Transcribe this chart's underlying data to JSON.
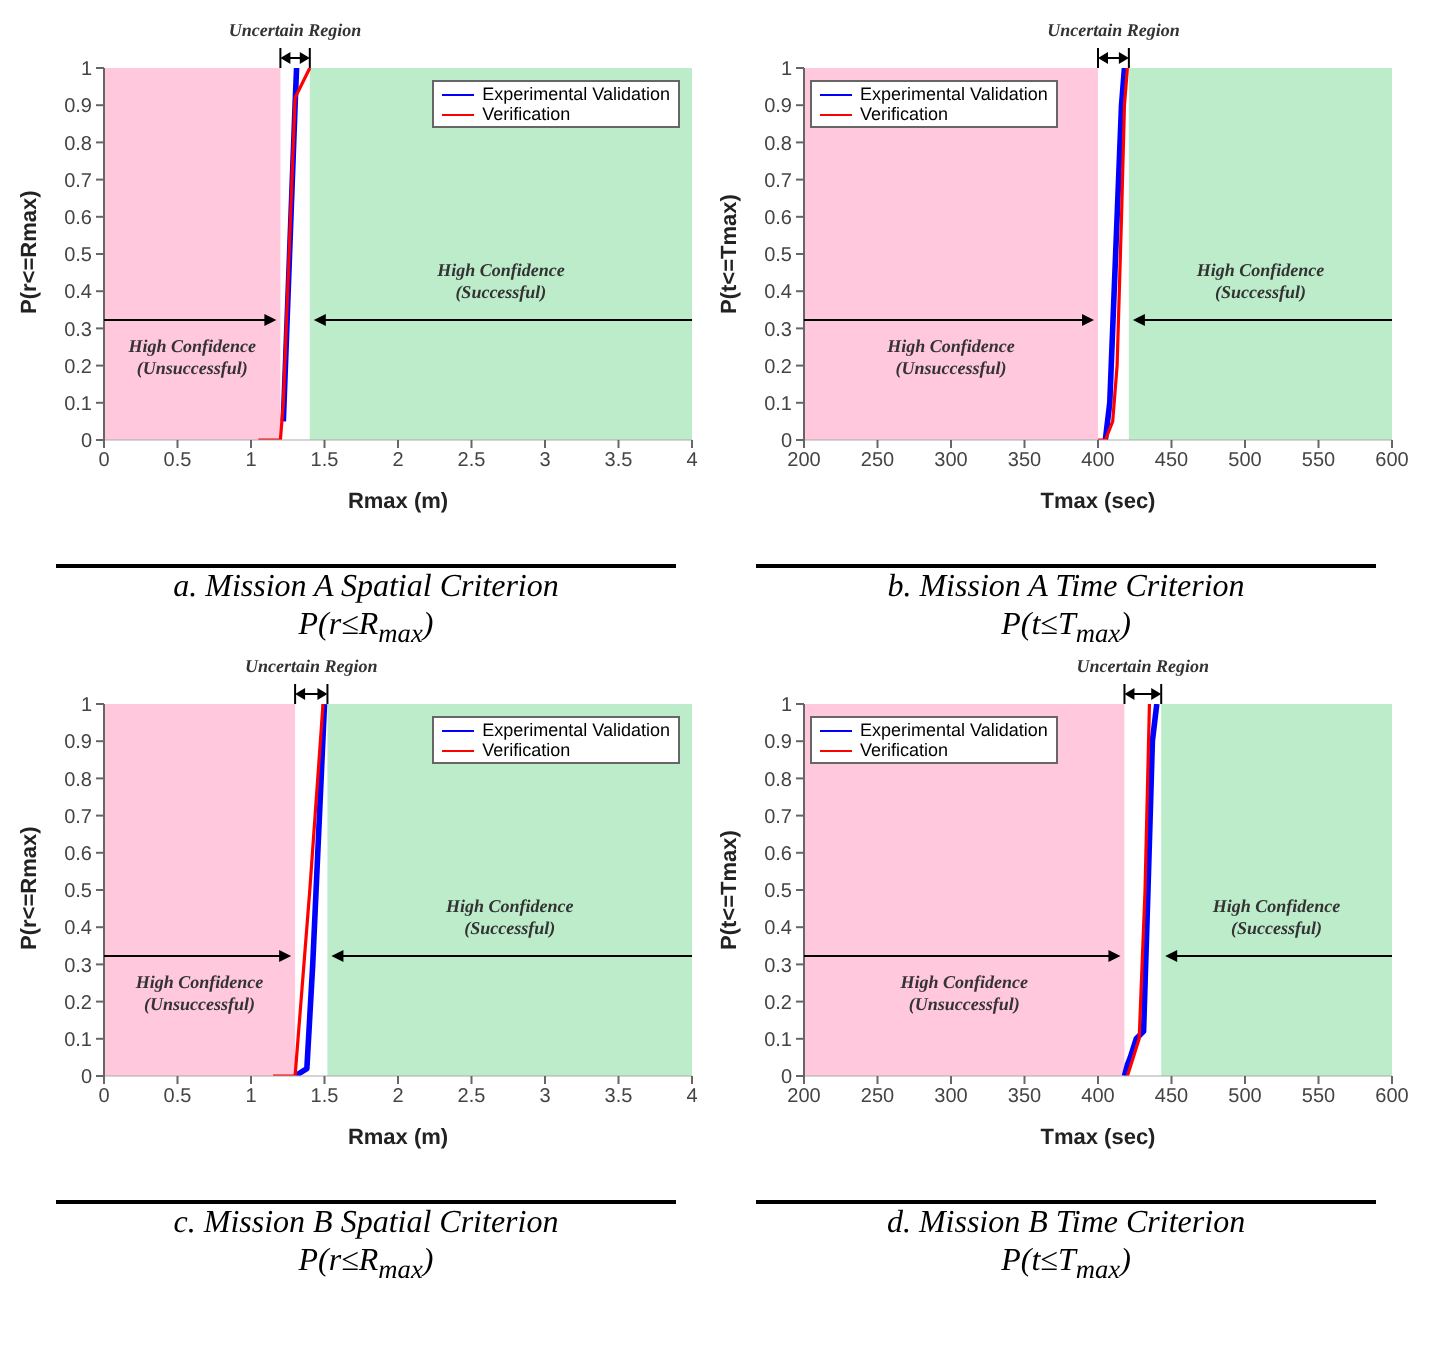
{
  "chart_data": [
    {
      "type": "line",
      "title": "a. Mission A Spatial Criterion",
      "subtitle": "P(r≤R$_{max}$)",
      "xlabel": "Rmax (m)",
      "ylabel": "P(r<=Rmax)",
      "xlim": [
        0,
        4
      ],
      "xticks": [
        0,
        0.5,
        1,
        1.5,
        2,
        2.5,
        3,
        3.5,
        4
      ],
      "ylim": [
        0,
        1
      ],
      "yticks": [
        0,
        0.1,
        0.2,
        0.3,
        0.4,
        0.5,
        0.6,
        0.7,
        0.8,
        0.9,
        1
      ],
      "legend": "top right",
      "grid": false,
      "annotations": [
        "Uncertain Region"
      ],
      "bands": [
        {
          "axis": "x",
          "from": 0,
          "to": 1.2,
          "label": "High Confidence (Unsuccessful)",
          "color": "#ffc8dc"
        },
        {
          "axis": "x",
          "from": 1.4,
          "to": 4,
          "label": "High Confidence (Successful)",
          "color": "#bdeccb"
        }
      ],
      "series": [
        {
          "name": "Experimental Validation",
          "color": "#0000ff",
          "x": [
            1.22,
            1.3,
            1.31
          ],
          "values": [
            0.05,
            0.9,
            1
          ]
        },
        {
          "name": "Verification",
          "color": "#ff0000",
          "x": [
            1.05,
            1.2,
            1.22,
            1.3,
            1.4
          ],
          "values": [
            0,
            0,
            0.1,
            0.92,
            1
          ]
        }
      ]
    },
    {
      "type": "line",
      "title": "b. Mission A Time Criterion",
      "subtitle": "P(t≤T$_{max}$)",
      "xlabel": "Tmax (sec)",
      "ylabel": "P(t<=Tmax)",
      "xlim": [
        200,
        600
      ],
      "xticks": [
        200,
        250,
        300,
        350,
        400,
        450,
        500,
        550,
        600
      ],
      "ylim": [
        0,
        1
      ],
      "yticks": [
        0,
        0.1,
        0.2,
        0.3,
        0.4,
        0.5,
        0.6,
        0.7,
        0.8,
        0.9,
        1
      ],
      "legend": "top left",
      "grid": false,
      "annotations": [
        "Uncertain Region"
      ],
      "bands": [
        {
          "axis": "x",
          "from": 200,
          "to": 400,
          "label": "High Confidence (Unsuccessful)",
          "color": "#ffc8dc"
        },
        {
          "axis": "x",
          "from": 421,
          "to": 600,
          "label": "High Confidence (Successful)",
          "color": "#bdeccb"
        }
      ],
      "series": [
        {
          "name": "Experimental Validation",
          "color": "#0000ff",
          "x": [
            405,
            408,
            412,
            416,
            418
          ],
          "values": [
            0,
            0.1,
            0.5,
            0.9,
            1
          ]
        },
        {
          "name": "Verification",
          "color": "#ff0000",
          "x": [
            400,
            405,
            410,
            413,
            416,
            418,
            420
          ],
          "values": [
            0,
            0,
            0.05,
            0.2,
            0.6,
            0.9,
            1
          ]
        }
      ]
    },
    {
      "type": "line",
      "title": "c. Mission B Spatial Criterion",
      "subtitle": "P(r≤R$_{max}$)",
      "xlabel": "Rmax (m)",
      "ylabel": "P(r<=Rmax)",
      "xlim": [
        0,
        4
      ],
      "xticks": [
        0,
        0.5,
        1,
        1.5,
        2,
        2.5,
        3,
        3.5,
        4
      ],
      "ylim": [
        0,
        1
      ],
      "yticks": [
        0,
        0.1,
        0.2,
        0.3,
        0.4,
        0.5,
        0.6,
        0.7,
        0.8,
        0.9,
        1
      ],
      "legend": "top right",
      "grid": false,
      "annotations": [
        "Uncertain Region"
      ],
      "bands": [
        {
          "axis": "x",
          "from": 0,
          "to": 1.3,
          "label": "High Confidence (Unsuccessful)",
          "color": "#ffc8dc"
        },
        {
          "axis": "x",
          "from": 1.52,
          "to": 4,
          "label": "High Confidence (Successful)",
          "color": "#bdeccb"
        }
      ],
      "series": [
        {
          "name": "Experimental Validation",
          "color": "#0000ff",
          "x": [
            1.3,
            1.38,
            1.42,
            1.5
          ],
          "values": [
            0,
            0.02,
            0.3,
            1
          ]
        },
        {
          "name": "Verification",
          "color": "#ff0000",
          "x": [
            1.15,
            1.3,
            1.4,
            1.49
          ],
          "values": [
            0,
            0,
            0.5,
            1
          ]
        }
      ]
    },
    {
      "type": "line",
      "title": "d. Mission B Time Criterion",
      "subtitle": "P(t≤T$_{max}$)",
      "xlabel": "Tmax (sec)",
      "ylabel": "P(t<=Tmax)",
      "xlim": [
        200,
        600
      ],
      "xticks": [
        200,
        250,
        300,
        350,
        400,
        450,
        500,
        550,
        600
      ],
      "ylim": [
        0,
        1
      ],
      "yticks": [
        0,
        0.1,
        0.2,
        0.3,
        0.4,
        0.5,
        0.6,
        0.7,
        0.8,
        0.9,
        1
      ],
      "legend": "top left",
      "grid": false,
      "annotations": [
        "Uncertain Region"
      ],
      "bands": [
        {
          "axis": "x",
          "from": 200,
          "to": 418,
          "label": "High Confidence (Unsuccessful)",
          "color": "#ffc8dc"
        },
        {
          "axis": "x",
          "from": 443,
          "to": 600,
          "label": "High Confidence (Successful)",
          "color": "#bdeccb"
        }
      ],
      "series": [
        {
          "name": "Experimental Validation",
          "color": "#0000ff",
          "x": [
            418,
            420,
            422,
            426,
            431,
            434,
            437,
            440
          ],
          "values": [
            0,
            0.03,
            0.05,
            0.1,
            0.12,
            0.5,
            0.9,
            1
          ]
        },
        {
          "name": "Verification",
          "color": "#ff0000",
          "x": [
            420,
            424,
            428,
            432,
            435
          ],
          "values": [
            0,
            0.05,
            0.1,
            0.5,
            1
          ]
        }
      ]
    }
  ]
}
